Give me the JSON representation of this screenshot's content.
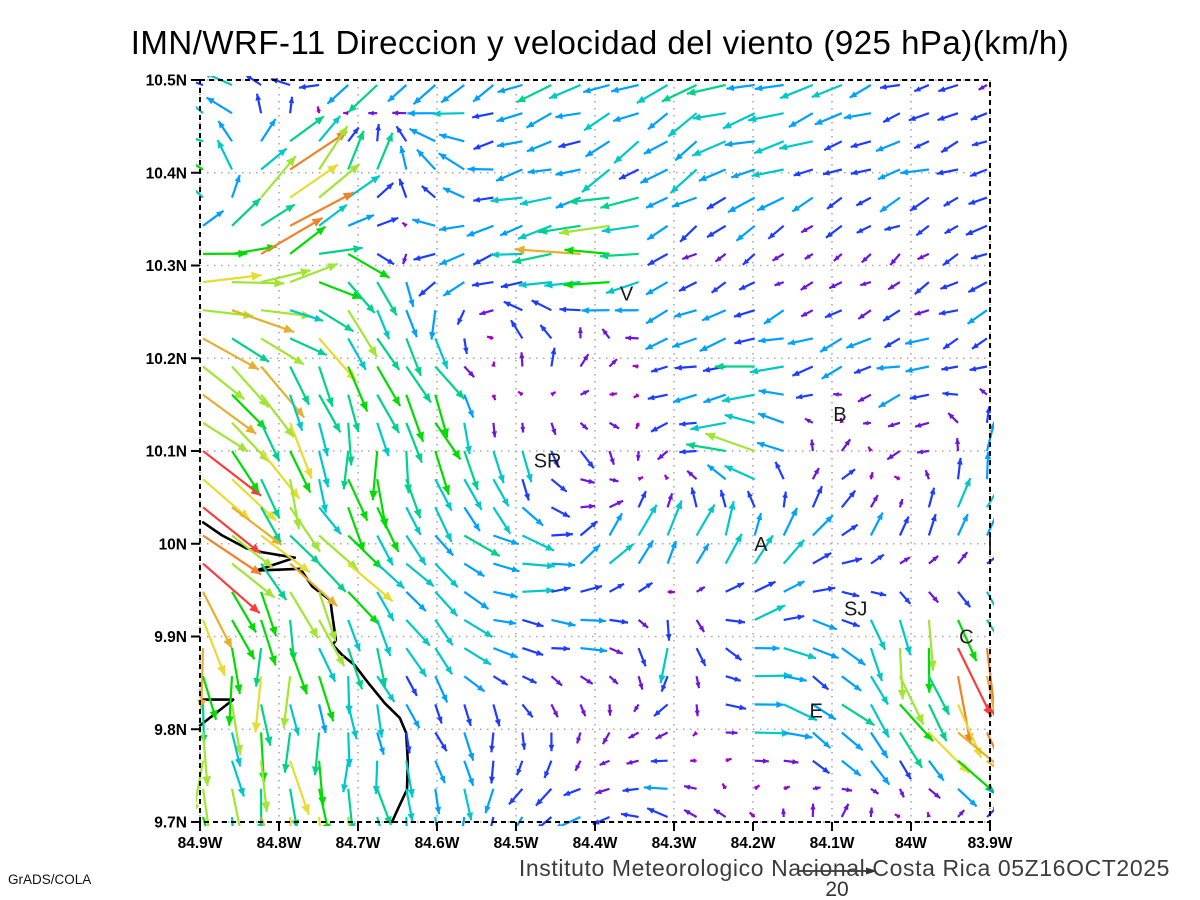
{
  "title": "IMN/WRF-11 Direccion y velocidad del viento (925 hPa)(km/h)",
  "footer": {
    "institute": "Instituto Meteorologico Nacional Costa Rica 05Z16OCT2025",
    "credit": "GrADS/COLA"
  },
  "chart_data": {
    "type": "quiver",
    "title": "IMN/WRF-11 Direccion y velocidad del viento (925 hPa)(km/h)",
    "units": "km/h",
    "lon_ticks": [
      "84.9W",
      "84.8W",
      "84.7W",
      "84.6W",
      "84.5W",
      "84.4W",
      "84.3W",
      "84.2W",
      "84.1W",
      "84W",
      "83.9W"
    ],
    "lat_ticks": [
      "10.5N",
      "10.4N",
      "10.3N",
      "10.2N",
      "10.1N",
      "10N",
      "9.9N",
      "9.8N",
      "9.7N"
    ],
    "lon_range": [
      -84.9,
      -83.9
    ],
    "lat_range": [
      9.7,
      10.5
    ],
    "grid_on": true,
    "grid_color": "#aaaaaa",
    "frame_color": "#000000",
    "reference": {
      "speed": 20,
      "label": "20"
    },
    "colormap": {
      "thresholds": [
        2,
        4,
        6,
        8,
        10,
        11.5,
        13,
        14.5,
        16,
        17.5,
        19,
        21
      ],
      "colors": [
        "#a000c8",
        "#6e14dc",
        "#1e3cff",
        "#00a0ff",
        "#00c8c8",
        "#00d28c",
        "#00dc00",
        "#a0e632",
        "#e6dc32",
        "#e6af2d",
        "#f08228",
        "#fa3c3c",
        "#f000a0"
      ]
    },
    "vector_grid": {
      "lons": [
        -84.9,
        -84.8,
        -84.7,
        -84.6,
        -84.5,
        -84.4,
        -84.3,
        -84.2,
        -84.1,
        -84.0,
        -83.9
      ],
      "lats": [
        10.5,
        10.4,
        10.3,
        10.2,
        10.1,
        10.0,
        9.9,
        9.8,
        9.7
      ],
      "u": [
        [
          -6,
          -7,
          -6,
          -7,
          -7,
          -8,
          -7,
          -8,
          -7,
          -5,
          -3
        ],
        [
          -14,
          14,
          6,
          -5,
          -6,
          -7,
          -6,
          -7,
          -6,
          -6,
          -4
        ],
        [
          19,
          13,
          9,
          -6,
          -7,
          -16,
          -5,
          -2,
          -2,
          -2,
          -5
        ],
        [
          10,
          10,
          4,
          5,
          -2,
          4,
          -6,
          -8,
          -6,
          -6,
          -5
        ],
        [
          13,
          3,
          1,
          3,
          0,
          3,
          -3,
          -11,
          3,
          -4,
          2
        ],
        [
          15,
          10,
          8,
          6,
          8,
          5,
          3,
          4,
          5,
          2,
          3
        ],
        [
          2,
          1,
          4,
          5,
          7,
          6,
          0,
          8,
          5,
          2,
          5
        ],
        [
          0,
          1,
          0,
          3,
          0,
          -1,
          -4,
          8,
          6,
          8,
          11
        ],
        [
          1,
          3,
          1,
          2,
          -4,
          -6,
          -5,
          -2,
          1,
          -2,
          4
        ]
      ],
      "v": [
        [
          4,
          2,
          -7,
          -5,
          -3,
          -3,
          -4,
          -2,
          -2,
          -2,
          -1
        ],
        [
          7,
          8,
          11,
          6,
          -2,
          -3,
          -4,
          -3,
          -3,
          -2,
          -2
        ],
        [
          2,
          9,
          -7,
          -4,
          -2,
          -1,
          -3,
          -2,
          -1,
          -2,
          -2
        ],
        [
          -12,
          -10,
          -12,
          -9,
          6,
          4,
          -2,
          -2,
          -2,
          -2,
          -2
        ],
        [
          -10,
          -12,
          -11,
          -9,
          -7,
          -4,
          -2,
          2,
          3,
          -2,
          8
        ],
        [
          -8,
          -10,
          -9,
          -7,
          -2,
          6,
          9,
          8,
          4,
          6,
          9
        ],
        [
          -14,
          -11,
          -9,
          -5,
          -1,
          0,
          -9,
          1,
          -3,
          -13,
          -19
        ],
        [
          -12,
          -11,
          -7,
          -6,
          -5,
          -3,
          -1,
          -1,
          -6,
          -9,
          -16
        ],
        [
          -11,
          -14,
          -11,
          -9,
          -4,
          -2,
          3,
          2,
          4,
          1,
          4
        ]
      ]
    },
    "stations": [
      {
        "label": "V",
        "lon": -84.36,
        "lat": 10.27
      },
      {
        "label": "B",
        "lon": -84.09,
        "lat": 10.14
      },
      {
        "label": "SR",
        "lon": -84.46,
        "lat": 10.09
      },
      {
        "label": "A",
        "lon": -84.19,
        "lat": 10.0
      },
      {
        "label": "SJ",
        "lon": -84.07,
        "lat": 9.93
      },
      {
        "label": "C",
        "lon": -83.93,
        "lat": 9.9
      },
      {
        "label": "E",
        "lon": -84.12,
        "lat": 9.82
      },
      {
        "label": "I",
        "lon": -83.9,
        "lat": 10.0
      }
    ],
    "coastline": {
      "main": [
        [
          -84.896,
          10.023
        ],
        [
          -84.872,
          10.009
        ],
        [
          -84.841,
          9.995
        ],
        [
          -84.822,
          9.991
        ],
        [
          -84.78,
          9.985
        ],
        [
          -84.829,
          9.971
        ],
        [
          -84.773,
          9.973
        ],
        [
          -84.758,
          9.954
        ],
        [
          -84.735,
          9.939
        ],
        [
          -84.733,
          9.926
        ],
        [
          -84.728,
          9.896
        ],
        [
          -84.732,
          9.891
        ],
        [
          -84.72,
          9.88
        ],
        [
          -84.704,
          9.869
        ],
        [
          -84.687,
          9.85
        ],
        [
          -84.666,
          9.828
        ],
        [
          -84.647,
          9.812
        ],
        [
          -84.639,
          9.796
        ],
        [
          -84.637,
          9.765
        ],
        [
          -84.638,
          9.735
        ],
        [
          -84.649,
          9.715
        ],
        [
          -84.657,
          9.7
        ]
      ],
      "islet": [
        [
          -84.897,
          9.832
        ],
        [
          -84.858,
          9.832
        ],
        [
          -84.9,
          9.804
        ]
      ]
    }
  }
}
